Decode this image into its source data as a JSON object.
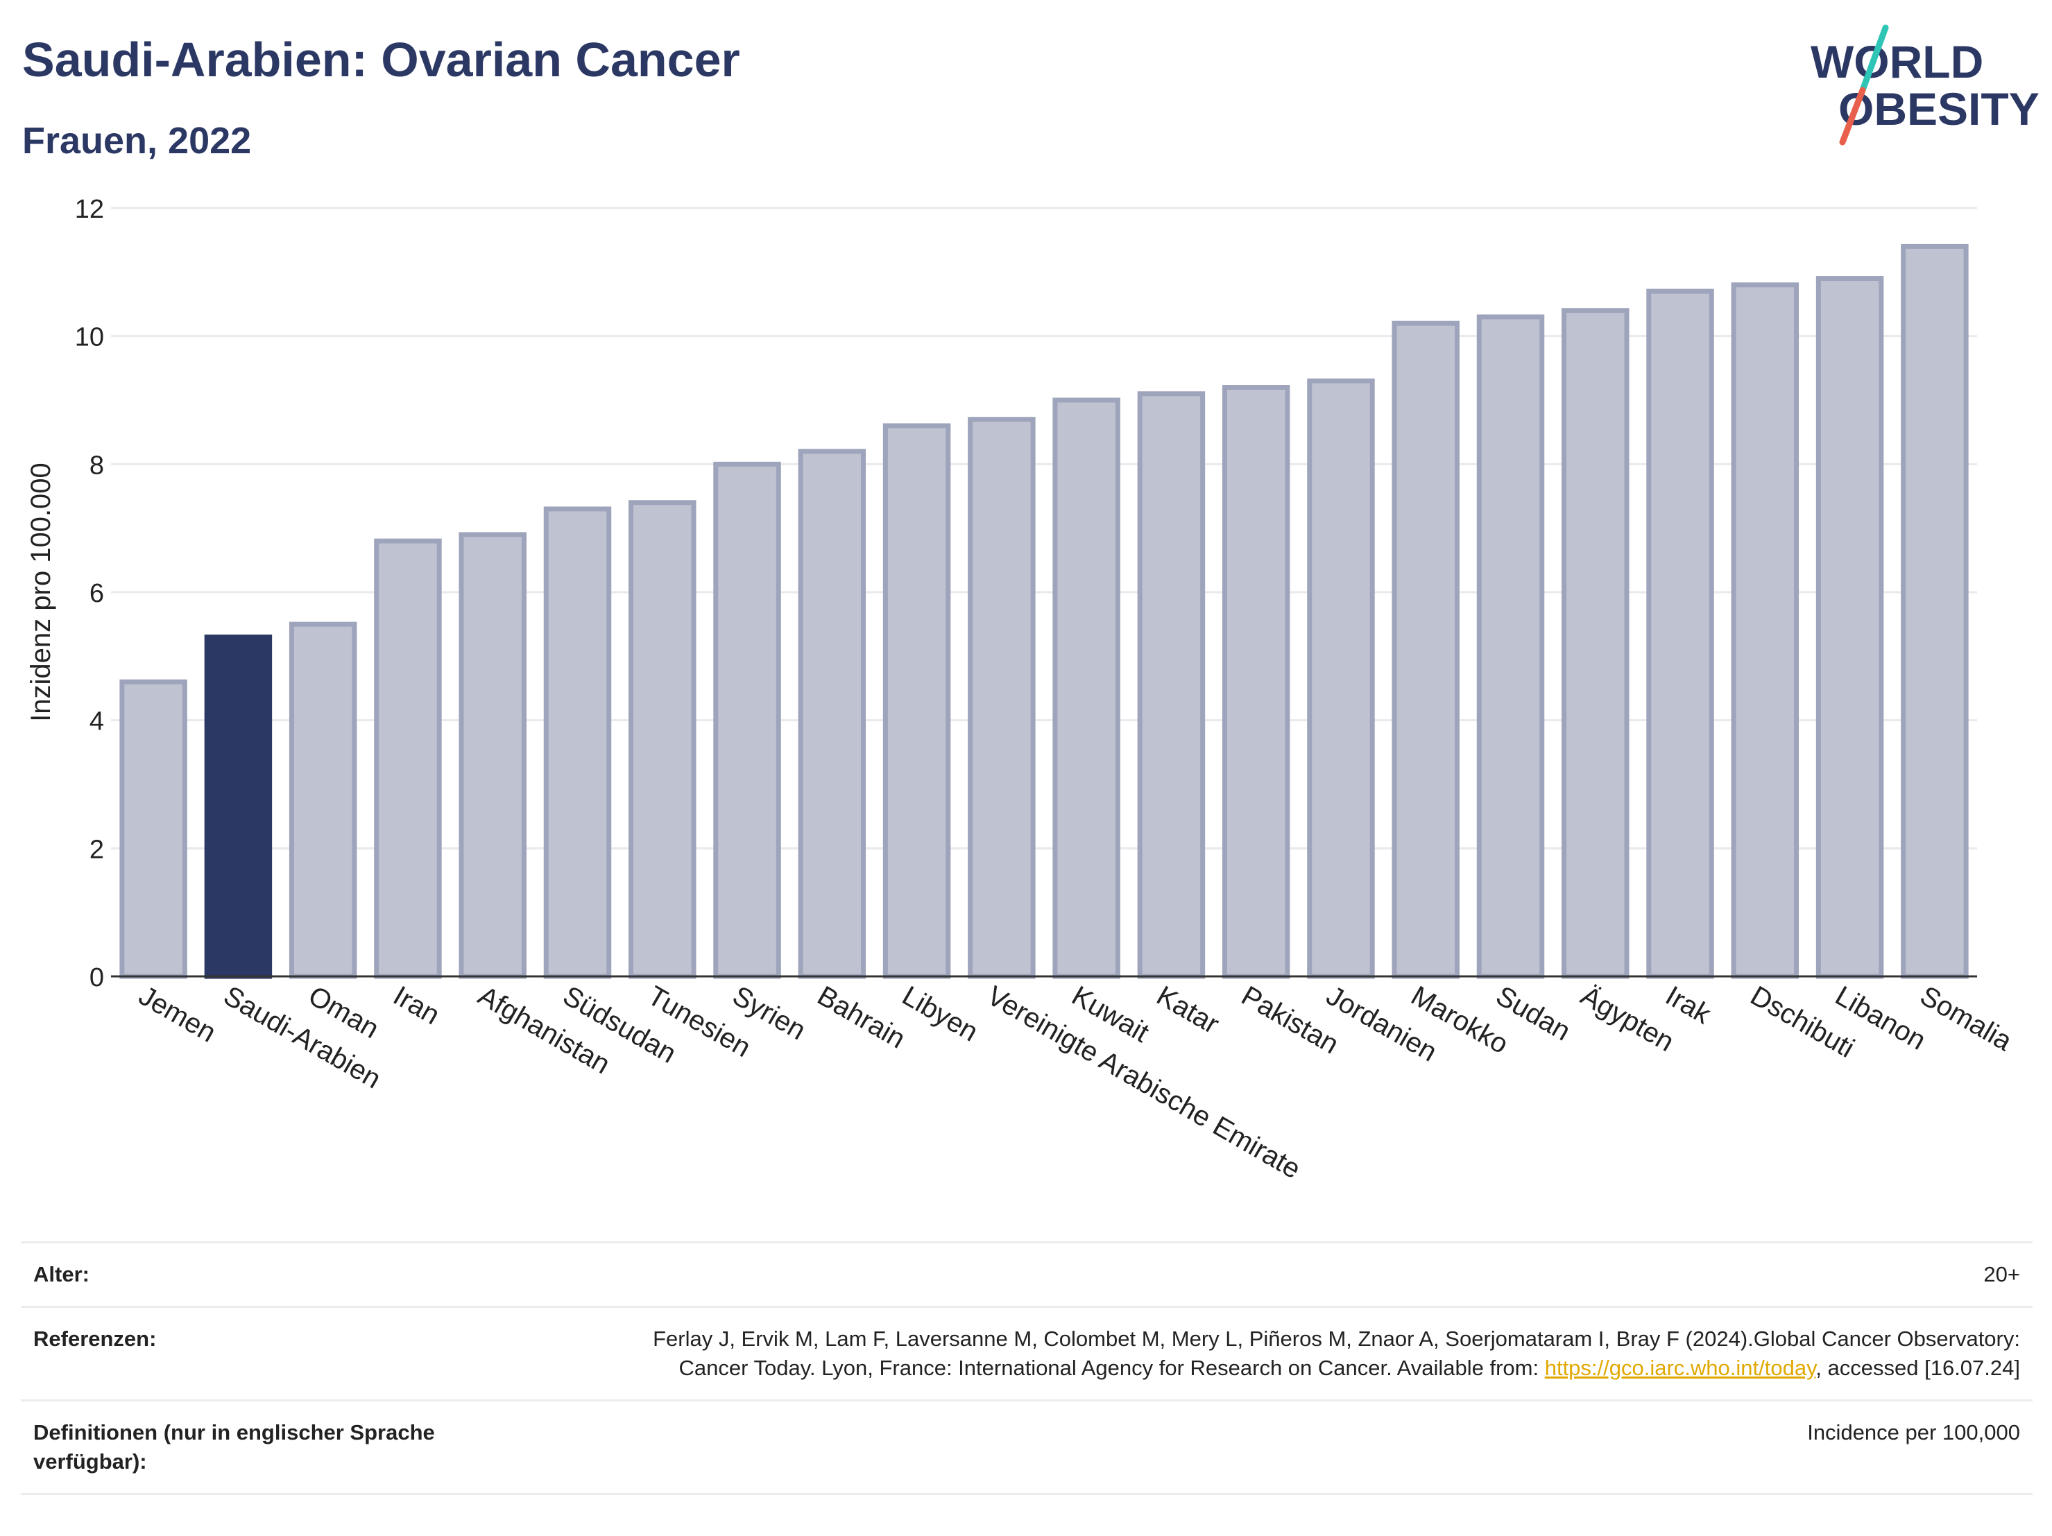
{
  "header": {
    "title": "Saudi-Arabien: Ovarian Cancer",
    "subtitle": "Frauen, 2022"
  },
  "logo": {
    "line1": "WORLD",
    "line2": "OBESITY",
    "icon": "world-obesity-logo"
  },
  "colors": {
    "highlight": "#2c3864",
    "bar": "#bfc3d1",
    "bar_border": "#9ea4bb",
    "accent_teal": "#2ec4b6",
    "accent_red": "#e8604c"
  },
  "chart_data": {
    "type": "bar",
    "title": "Saudi-Arabien: Ovarian Cancer",
    "subtitle": "Frauen, 2022",
    "ylabel": "Inzidenz pro 100.000",
    "xlabel": "",
    "ylim": [
      0,
      12
    ],
    "yticks": [
      0,
      2,
      4,
      6,
      8,
      10,
      12
    ],
    "grid": true,
    "highlight": "Saudi-Arabien",
    "categories": [
      "Jemen",
      "Saudi-Arabien",
      "Oman",
      "Iran",
      "Afghanistan",
      "Südsudan",
      "Tunesien",
      "Syrien",
      "Bahrain",
      "Libyen",
      "Vereinigte Arabische Emirate",
      "Kuwait",
      "Katar",
      "Pakistan",
      "Jordanien",
      "Marokko",
      "Sudan",
      "Ägypten",
      "Irak",
      "Dschibuti",
      "Libanon",
      "Somalia"
    ],
    "values": [
      4.6,
      5.3,
      5.5,
      6.8,
      6.9,
      7.3,
      7.4,
      8.0,
      8.2,
      8.6,
      8.7,
      9.0,
      9.1,
      9.2,
      9.3,
      10.2,
      10.3,
      10.4,
      10.7,
      10.8,
      10.9,
      11.4
    ]
  },
  "info": {
    "age_label": "Alter:",
    "age_value": "20+",
    "ref_label": "Referenzen:",
    "ref_text": "Ferlay J, Ervik M, Lam F, Laversanne M, Colombet M, Mery L, Piñeros M, Znaor A, Soerjomataram I, Bray F (2024).Global Cancer Observatory: Cancer Today. Lyon, France: International Agency for Research on Cancer. Available from: ",
    "ref_link": "https://gco.iarc.who.int/today",
    "ref_suffix": ", accessed [16.07.24]",
    "def_label": "Definitionen (nur in englischer Sprache verfügbar):",
    "def_value": "Incidence per 100,000"
  }
}
